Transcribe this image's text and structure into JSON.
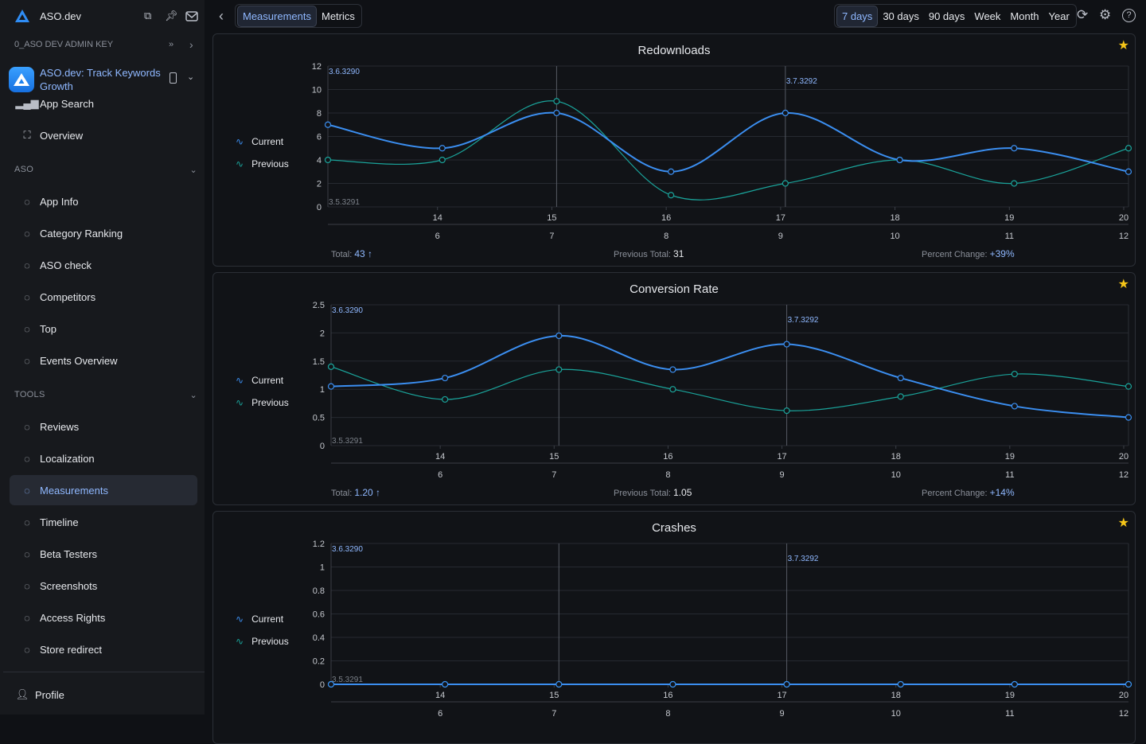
{
  "sidebar": {
    "brand": "ASO.dev",
    "key_label": "0_ASO DEV ADMIN KEY",
    "app_name": "ASO.dev: Track Keywords Growth",
    "app_search": "App Search",
    "overview": "Overview",
    "aso_section": "ASO",
    "aso_items": [
      {
        "label": "App Info",
        "icon": "info-icon"
      },
      {
        "label": "Category Ranking",
        "icon": "chart-icon"
      },
      {
        "label": "ASO check",
        "icon": "check-circle-icon"
      },
      {
        "label": "Competitors",
        "icon": "competitors-icon"
      },
      {
        "label": "Top",
        "icon": "trophy-icon"
      },
      {
        "label": "Events Overview",
        "icon": "bell-icon"
      }
    ],
    "tools_section": "TOOLS",
    "tools_items": [
      {
        "label": "Reviews",
        "icon": "edit-icon"
      },
      {
        "label": "Localization",
        "icon": "translate-icon"
      },
      {
        "label": "Measurements",
        "icon": "chart-line-icon",
        "active": true
      },
      {
        "label": "Timeline",
        "icon": "history-icon"
      },
      {
        "label": "Beta Testers",
        "icon": "users-icon"
      },
      {
        "label": "Screenshots",
        "icon": "image-icon"
      },
      {
        "label": "Access Rights",
        "icon": "lock-icon"
      },
      {
        "label": "Store redirect",
        "icon": "globe-icon"
      }
    ],
    "profile": "Profile"
  },
  "topbar": {
    "tabs": [
      "Measurements",
      "Metrics"
    ],
    "active_tab": "Measurements",
    "ranges": [
      "7 days",
      "30 days",
      "90 days",
      "Week",
      "Month",
      "Year"
    ],
    "active_range": "7 days"
  },
  "legend": {
    "current": "Current",
    "previous": "Previous"
  },
  "colors": {
    "current": "#3b8ef0",
    "previous": "#1aa39a",
    "accent": "#8fb8ff",
    "star": "#f5c518"
  },
  "chart_data": [
    {
      "type": "line",
      "title": "Redownloads",
      "x_top": [
        "",
        "14",
        "15",
        "16",
        "17",
        "18",
        "19",
        "20"
      ],
      "x_bottom": [
        "",
        "6",
        "7",
        "8",
        "9",
        "10",
        "11",
        "12"
      ],
      "ylim": [
        0,
        12
      ],
      "yticks": [
        "0",
        "2",
        "4",
        "6",
        "8",
        "10",
        "12"
      ],
      "series": [
        {
          "name": "Current",
          "values": [
            7,
            5,
            8,
            3,
            8,
            4,
            5,
            3
          ]
        },
        {
          "name": "Previous",
          "values": [
            4,
            4,
            9,
            1,
            2,
            4,
            2,
            5
          ]
        }
      ],
      "versions": {
        "top_left": "3.6.3290",
        "bottom_left": "3.5.3291",
        "mid": "3.7.3292"
      },
      "total_label": "Total:",
      "total": "43 ↑",
      "prev_total_label": "Previous Total:",
      "prev_total": "31",
      "change_label": "Percent Change:",
      "change": "+39%"
    },
    {
      "type": "line",
      "title": "Conversion Rate",
      "x_top": [
        "",
        "14",
        "15",
        "16",
        "17",
        "18",
        "19",
        "20"
      ],
      "x_bottom": [
        "",
        "6",
        "7",
        "8",
        "9",
        "10",
        "11",
        "12"
      ],
      "ylim": [
        0,
        2.5
      ],
      "yticks": [
        "0",
        "0.5",
        "1",
        "1.5",
        "2",
        "2.5"
      ],
      "series": [
        {
          "name": "Current",
          "values": [
            1.05,
            1.2,
            1.95,
            1.35,
            1.8,
            1.2,
            0.7,
            0.5
          ]
        },
        {
          "name": "Previous",
          "values": [
            1.4,
            0.82,
            1.35,
            1.0,
            0.62,
            0.87,
            1.27,
            1.05
          ]
        }
      ],
      "versions": {
        "top_left": "3.6.3290",
        "bottom_left": "3.5.3291",
        "mid": "3.7.3292"
      },
      "total_label": "Total:",
      "total": "1.20 ↑",
      "prev_total_label": "Previous Total:",
      "prev_total": "1.05",
      "change_label": "Percent Change:",
      "change": "+14%"
    },
    {
      "type": "line",
      "title": "Crashes",
      "x_top": [
        "",
        "14",
        "15",
        "16",
        "17",
        "18",
        "19",
        "20"
      ],
      "x_bottom": [
        "",
        "6",
        "7",
        "8",
        "9",
        "10",
        "11",
        "12"
      ],
      "ylim": [
        0,
        1.2
      ],
      "yticks": [
        "0",
        "0.2",
        "0.4",
        "0.6",
        "0.8",
        "1",
        "1.2"
      ],
      "series": [
        {
          "name": "Current",
          "values": [
            0,
            0,
            0,
            0,
            0,
            0,
            0,
            0
          ]
        },
        {
          "name": "Previous",
          "values": [
            0,
            0,
            0,
            0,
            0,
            0,
            0,
            0
          ]
        }
      ],
      "versions": {
        "top_left": "3.6.3290",
        "bottom_left": "3.5.3291",
        "mid": "3.7.3292"
      }
    }
  ]
}
